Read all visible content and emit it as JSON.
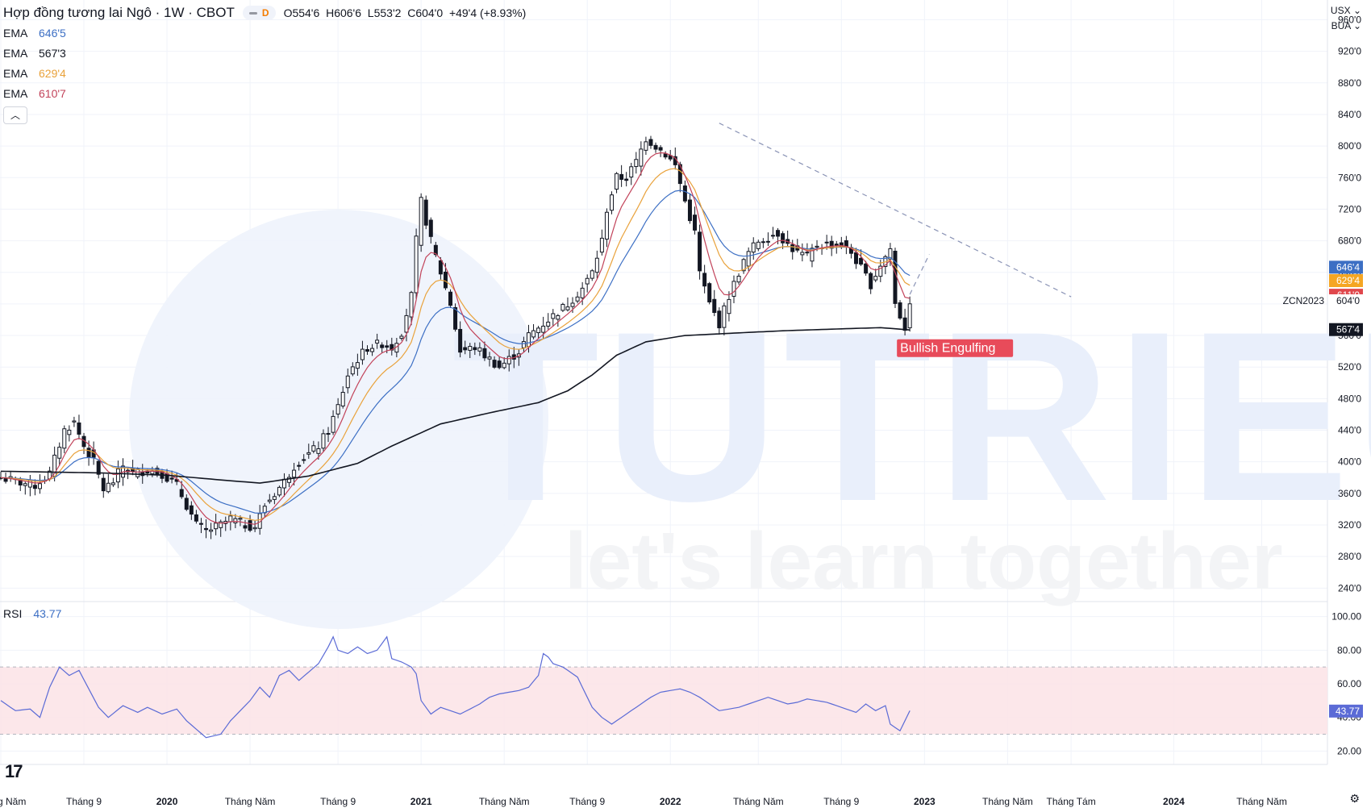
{
  "header": {
    "title": "Hợp đồng tương lai Ngô · 1W · CBOT",
    "interval_badge": "D",
    "ohlc": [
      {
        "k": "O",
        "v": "554'6"
      },
      {
        "k": "H",
        "v": "606'6"
      },
      {
        "k": "L",
        "v": "553'2"
      },
      {
        "k": "C",
        "v": "604'0"
      }
    ],
    "change": "+49'4 (+8.93%)"
  },
  "indicators": [
    {
      "label": "EMA",
      "value": "646'5",
      "color": "#3c6fc4"
    },
    {
      "label": "EMA",
      "value": "567'3",
      "color": "#131722"
    },
    {
      "label": "EMA",
      "value": "629'4",
      "color": "#e9a23b"
    },
    {
      "label": "EMA",
      "value": "610'7",
      "color": "#c2435a"
    }
  ],
  "top_right": {
    "currency": "USX",
    "unit": "BUA"
  },
  "rsi": {
    "label": "RSI",
    "value": "43.77",
    "color": "#5b6bd6"
  },
  "watermark": {
    "brand": "TUTRIEU",
    "tagline": "let's learn together"
  },
  "annotation": {
    "pattern": "Bullish Engulfing",
    "symbol": "ZCN2023"
  },
  "chart_data": {
    "type": "candlestick",
    "price_axis": {
      "ylim": [
        225,
        985
      ],
      "ticks": [
        "960'0",
        "920'0",
        "880'0",
        "840'0",
        "800'0",
        "760'0",
        "720'0",
        "680'0",
        "640'0",
        "600'0",
        "560'0",
        "520'0",
        "480'0",
        "440'0",
        "400'0",
        "360'0",
        "320'0",
        "280'0",
        "240'0"
      ]
    },
    "price_tags": [
      {
        "value": 646.5,
        "label": "646'4",
        "color": "#3c6fc4"
      },
      {
        "value": 629.5,
        "label": "629'4",
        "color": "#f5a623"
      },
      {
        "value": 611.0,
        "label": "611'0",
        "color": "#e0474c"
      },
      {
        "value": 604.0,
        "label": "604'0",
        "color": "#ffffff"
      },
      {
        "value": 567.5,
        "label": "567'4",
        "color": "#131722"
      }
    ],
    "time_axis": {
      "labels": [
        "Tháng Năm",
        "Tháng 9",
        "2020",
        "Tháng Năm",
        "Tháng 9",
        "2021",
        "Tháng Năm",
        "Tháng 9",
        "2022",
        "Tháng Năm",
        "Tháng 9",
        "2023",
        "Tháng Năm",
        "Tháng Tám",
        "2024",
        "Tháng Năm"
      ],
      "label_weeks": [
        0,
        17,
        34,
        51,
        69,
        86,
        103,
        120,
        137,
        155,
        172,
        189,
        206,
        219,
        240,
        258
      ]
    },
    "close_keypoints": [
      [
        0,
        380
      ],
      [
        3,
        375
      ],
      [
        7,
        370
      ],
      [
        10,
        385
      ],
      [
        13,
        440
      ],
      [
        15,
        450
      ],
      [
        17,
        420
      ],
      [
        19,
        400
      ],
      [
        21,
        365
      ],
      [
        23,
        375
      ],
      [
        25,
        395
      ],
      [
        27,
        385
      ],
      [
        30,
        390
      ],
      [
        33,
        385
      ],
      [
        36,
        370
      ],
      [
        38,
        345
      ],
      [
        40,
        320
      ],
      [
        42,
        312
      ],
      [
        45,
        320
      ],
      [
        47,
        328
      ],
      [
        50,
        320
      ],
      [
        52,
        318
      ],
      [
        54,
        345
      ],
      [
        56,
        360
      ],
      [
        58,
        375
      ],
      [
        60,
        395
      ],
      [
        63,
        410
      ],
      [
        65,
        420
      ],
      [
        67,
        440
      ],
      [
        69,
        470
      ],
      [
        71,
        510
      ],
      [
        73,
        530
      ],
      [
        75,
        545
      ],
      [
        78,
        550
      ],
      [
        80,
        545
      ],
      [
        82,
        565
      ],
      [
        84,
        610
      ],
      [
        85,
        680
      ],
      [
        86,
        730
      ],
      [
        88,
        680
      ],
      [
        90,
        640
      ],
      [
        92,
        600
      ],
      [
        94,
        540
      ],
      [
        97,
        545
      ],
      [
        99,
        535
      ],
      [
        102,
        520
      ],
      [
        104,
        530
      ],
      [
        106,
        540
      ],
      [
        108,
        560
      ],
      [
        111,
        575
      ],
      [
        113,
        585
      ],
      [
        116,
        600
      ],
      [
        119,
        620
      ],
      [
        121,
        640
      ],
      [
        123,
        680
      ],
      [
        124,
        720
      ],
      [
        126,
        760
      ],
      [
        128,
        760
      ],
      [
        130,
        780
      ],
      [
        132,
        810
      ],
      [
        134,
        800
      ],
      [
        136,
        790
      ],
      [
        138,
        775
      ],
      [
        140,
        730
      ],
      [
        142,
        690
      ],
      [
        143,
        640
      ],
      [
        145,
        600
      ],
      [
        147,
        575
      ],
      [
        149,
        610
      ],
      [
        151,
        640
      ],
      [
        153,
        665
      ],
      [
        155,
        680
      ],
      [
        157,
        685
      ],
      [
        159,
        690
      ],
      [
        161,
        675
      ],
      [
        163,
        665
      ],
      [
        165,
        660
      ],
      [
        167,
        675
      ],
      [
        170,
        675
      ],
      [
        172,
        675
      ],
      [
        174,
        665
      ],
      [
        176,
        645
      ],
      [
        178,
        625
      ],
      [
        180,
        650
      ],
      [
        182,
        670
      ],
      [
        183,
        600
      ],
      [
        185,
        570
      ],
      [
        186,
        604
      ]
    ],
    "ema_slow_keypoints": [
      [
        0,
        388
      ],
      [
        20,
        386
      ],
      [
        34,
        383
      ],
      [
        45,
        377
      ],
      [
        53,
        373
      ],
      [
        63,
        382
      ],
      [
        73,
        398
      ],
      [
        80,
        420
      ],
      [
        90,
        448
      ],
      [
        100,
        462
      ],
      [
        110,
        475
      ],
      [
        116,
        490
      ],
      [
        121,
        510
      ],
      [
        126,
        535
      ],
      [
        132,
        552
      ],
      [
        140,
        560
      ],
      [
        150,
        563
      ],
      [
        160,
        566
      ],
      [
        170,
        568
      ],
      [
        180,
        570
      ],
      [
        186,
        567
      ]
    ],
    "rsi_axis": {
      "ylim": [
        12,
        108
      ],
      "ticks": [
        "100.00",
        "80.00",
        "60.00",
        "40.00",
        "20.00"
      ],
      "band": [
        30,
        70
      ]
    },
    "rsi_keypoints": [
      [
        0,
        50
      ],
      [
        3,
        44
      ],
      [
        6,
        45
      ],
      [
        8,
        40
      ],
      [
        10,
        58
      ],
      [
        12,
        70
      ],
      [
        14,
        65
      ],
      [
        16,
        68
      ],
      [
        18,
        57
      ],
      [
        20,
        46
      ],
      [
        22,
        40
      ],
      [
        25,
        47
      ],
      [
        28,
        43
      ],
      [
        30,
        46
      ],
      [
        33,
        42
      ],
      [
        36,
        45
      ],
      [
        38,
        38
      ],
      [
        40,
        33
      ],
      [
        42,
        28
      ],
      [
        45,
        30
      ],
      [
        47,
        38
      ],
      [
        49,
        44
      ],
      [
        51,
        50
      ],
      [
        53,
        58
      ],
      [
        55,
        52
      ],
      [
        57,
        65
      ],
      [
        59,
        68
      ],
      [
        61,
        62
      ],
      [
        63,
        67
      ],
      [
        65,
        72
      ],
      [
        67,
        82
      ],
      [
        68,
        88
      ],
      [
        69,
        80
      ],
      [
        71,
        78
      ],
      [
        73,
        82
      ],
      [
        75,
        78
      ],
      [
        77,
        80
      ],
      [
        79,
        88
      ],
      [
        80,
        75
      ],
      [
        82,
        73
      ],
      [
        84,
        70
      ],
      [
        85,
        66
      ],
      [
        86,
        50
      ],
      [
        88,
        42
      ],
      [
        90,
        46
      ],
      [
        92,
        44
      ],
      [
        94,
        42
      ],
      [
        96,
        45
      ],
      [
        98,
        48
      ],
      [
        100,
        52
      ],
      [
        102,
        54
      ],
      [
        104,
        55
      ],
      [
        106,
        56
      ],
      [
        108,
        58
      ],
      [
        110,
        65
      ],
      [
        111,
        78
      ],
      [
        112,
        76
      ],
      [
        113,
        72
      ],
      [
        115,
        70
      ],
      [
        117,
        66
      ],
      [
        118,
        64
      ],
      [
        119,
        58
      ],
      [
        121,
        46
      ],
      [
        123,
        40
      ],
      [
        125,
        36
      ],
      [
        127,
        40
      ],
      [
        129,
        44
      ],
      [
        131,
        48
      ],
      [
        133,
        52
      ],
      [
        135,
        55
      ],
      [
        137,
        56
      ],
      [
        139,
        57
      ],
      [
        141,
        55
      ],
      [
        143,
        52
      ],
      [
        145,
        48
      ],
      [
        147,
        44
      ],
      [
        149,
        45
      ],
      [
        151,
        46
      ],
      [
        153,
        48
      ],
      [
        155,
        50
      ],
      [
        157,
        52
      ],
      [
        159,
        50
      ],
      [
        161,
        48
      ],
      [
        163,
        49
      ],
      [
        165,
        51
      ],
      [
        167,
        50
      ],
      [
        169,
        49
      ],
      [
        171,
        47
      ],
      [
        173,
        45
      ],
      [
        175,
        43
      ],
      [
        177,
        48
      ],
      [
        179,
        44
      ],
      [
        181,
        47
      ],
      [
        182,
        36
      ],
      [
        184,
        32
      ],
      [
        186,
        44
      ]
    ]
  }
}
